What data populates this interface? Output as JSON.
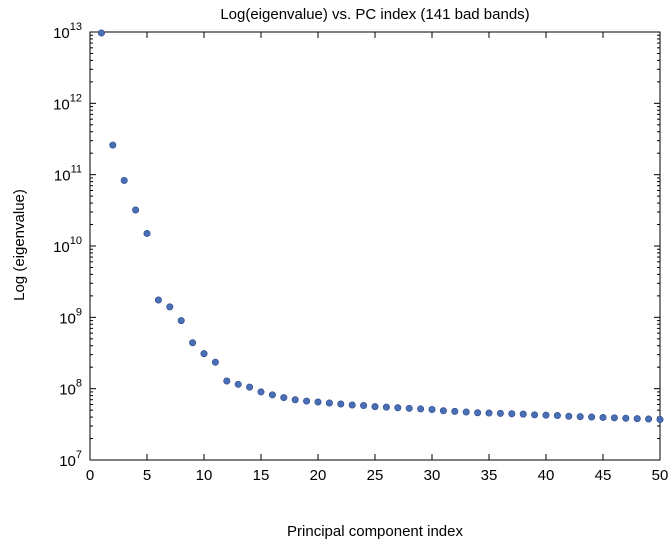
{
  "chart_data": {
    "type": "scatter",
    "title": "Log(eigenvalue) vs. PC index (141 bad bands)",
    "xlabel": "Principal component index",
    "ylabel": "Log (eigenvalue)",
    "xlim": [
      0,
      50
    ],
    "ylim": [
      10000000,
      10000000000000
    ],
    "yscale": "log",
    "grid": false,
    "marker_color": "#4a6fb5",
    "x_ticks": [
      0,
      5,
      10,
      15,
      20,
      25,
      30,
      35,
      40,
      45,
      50
    ],
    "y_ticks": [
      {
        "value": 10000000,
        "base": "10",
        "exp": "7"
      },
      {
        "value": 100000000,
        "base": "10",
        "exp": "8"
      },
      {
        "value": 1000000000,
        "base": "10",
        "exp": "9"
      },
      {
        "value": 10000000000,
        "base": "10",
        "exp": "10"
      },
      {
        "value": 100000000000,
        "base": "10",
        "exp": "11"
      },
      {
        "value": 1000000000000,
        "base": "10",
        "exp": "12"
      },
      {
        "value": 10000000000000,
        "base": "10",
        "exp": "13"
      }
    ],
    "x": [
      1,
      2,
      3,
      4,
      5,
      6,
      7,
      8,
      9,
      10,
      11,
      12,
      13,
      14,
      15,
      16,
      17,
      18,
      19,
      20,
      21,
      22,
      23,
      24,
      25,
      26,
      27,
      28,
      29,
      30,
      31,
      32,
      33,
      34,
      35,
      36,
      37,
      38,
      39,
      40,
      41,
      42,
      43,
      44,
      45,
      46,
      47,
      48,
      49,
      50
    ],
    "y": [
      9700000000000,
      260000000000,
      83000000000,
      32000000000,
      15000000000,
      1750000000,
      1400000000,
      900000000,
      440000000,
      310000000,
      235000000,
      128000000,
      115000000,
      105000000,
      90000000,
      82000000,
      75000000,
      70000000,
      67000000,
      65000000,
      63000000,
      61000000,
      59000000,
      58000000,
      56000000,
      55000000,
      54000000,
      53000000,
      52000000,
      51000000,
      49000000,
      48000000,
      47000000,
      46000000,
      45500000,
      45000000,
      44500000,
      44000000,
      43000000,
      42500000,
      42000000,
      41000000,
      40500000,
      40000000,
      39500000,
      39000000,
      38500000,
      38000000,
      37500000,
      37000000
    ]
  }
}
